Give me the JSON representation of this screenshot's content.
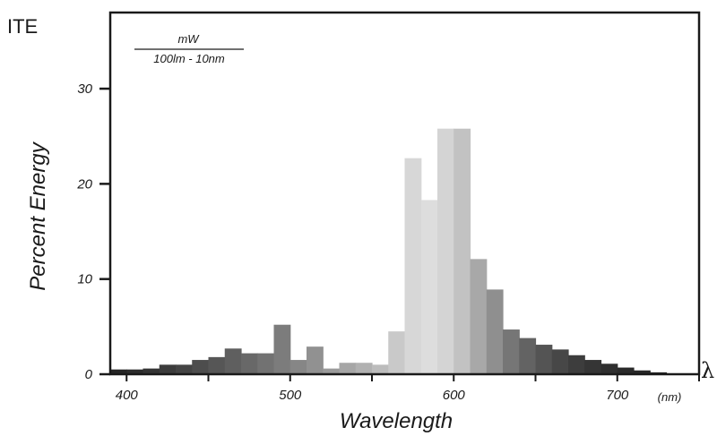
{
  "chart_data": {
    "type": "bar",
    "title": "ITE",
    "ylabel": "Percent Energy",
    "xlabel": "Wavelength",
    "x_unit_label": "(nm)",
    "axis_symbol": "λ",
    "unit_fraction": {
      "numerator": "mW",
      "denominator": "100lm - 10nm"
    },
    "xlim": [
      390,
      750
    ],
    "ylim": [
      0,
      38
    ],
    "xticks": [
      400,
      500,
      600,
      700
    ],
    "yticks": [
      0,
      10,
      20,
      30
    ],
    "grid": false,
    "bin_width_nm": 10,
    "bins": [
      {
        "x": 390,
        "value": 0.5,
        "color": "#262626"
      },
      {
        "x": 400,
        "value": 0.5,
        "color": "#2d2d2d"
      },
      {
        "x": 410,
        "value": 0.6,
        "color": "#343434"
      },
      {
        "x": 420,
        "value": 1.0,
        "color": "#3c3c3c"
      },
      {
        "x": 430,
        "value": 1.0,
        "color": "#444444"
      },
      {
        "x": 440,
        "value": 1.5,
        "color": "#4d4d4d"
      },
      {
        "x": 450,
        "value": 1.8,
        "color": "#565656"
      },
      {
        "x": 460,
        "value": 2.7,
        "color": "#5f5f5f"
      },
      {
        "x": 470,
        "value": 2.2,
        "color": "#686868"
      },
      {
        "x": 480,
        "value": 2.2,
        "color": "#727272"
      },
      {
        "x": 490,
        "value": 5.2,
        "color": "#7c7c7c"
      },
      {
        "x": 500,
        "value": 1.5,
        "color": "#868686"
      },
      {
        "x": 510,
        "value": 2.9,
        "color": "#919191"
      },
      {
        "x": 520,
        "value": 0.6,
        "color": "#9b9b9b"
      },
      {
        "x": 530,
        "value": 1.2,
        "color": "#a6a6a6"
      },
      {
        "x": 540,
        "value": 1.2,
        "color": "#b1b1b1"
      },
      {
        "x": 550,
        "value": 1.0,
        "color": "#bcbcbc"
      },
      {
        "x": 560,
        "value": 4.5,
        "color": "#c9c9c9"
      },
      {
        "x": 570,
        "value": 22.7,
        "color": "#d7d7d7"
      },
      {
        "x": 580,
        "value": 18.3,
        "color": "#dddddd"
      },
      {
        "x": 590,
        "value": 25.8,
        "color": "#d4d4d4"
      },
      {
        "x": 600,
        "value": 25.8,
        "color": "#c2c2c2"
      },
      {
        "x": 610,
        "value": 12.1,
        "color": "#a8a8a8"
      },
      {
        "x": 620,
        "value": 8.9,
        "color": "#8f8f8f"
      },
      {
        "x": 630,
        "value": 4.7,
        "color": "#767676"
      },
      {
        "x": 640,
        "value": 3.8,
        "color": "#636363"
      },
      {
        "x": 650,
        "value": 3.1,
        "color": "#545454"
      },
      {
        "x": 660,
        "value": 2.6,
        "color": "#474747"
      },
      {
        "x": 670,
        "value": 2.0,
        "color": "#3d3d3d"
      },
      {
        "x": 680,
        "value": 1.5,
        "color": "#353535"
      },
      {
        "x": 690,
        "value": 1.1,
        "color": "#2f2f2f"
      },
      {
        "x": 700,
        "value": 0.7,
        "color": "#2a2a2a"
      },
      {
        "x": 710,
        "value": 0.4,
        "color": "#272727"
      },
      {
        "x": 720,
        "value": 0.2,
        "color": "#252525"
      }
    ]
  }
}
